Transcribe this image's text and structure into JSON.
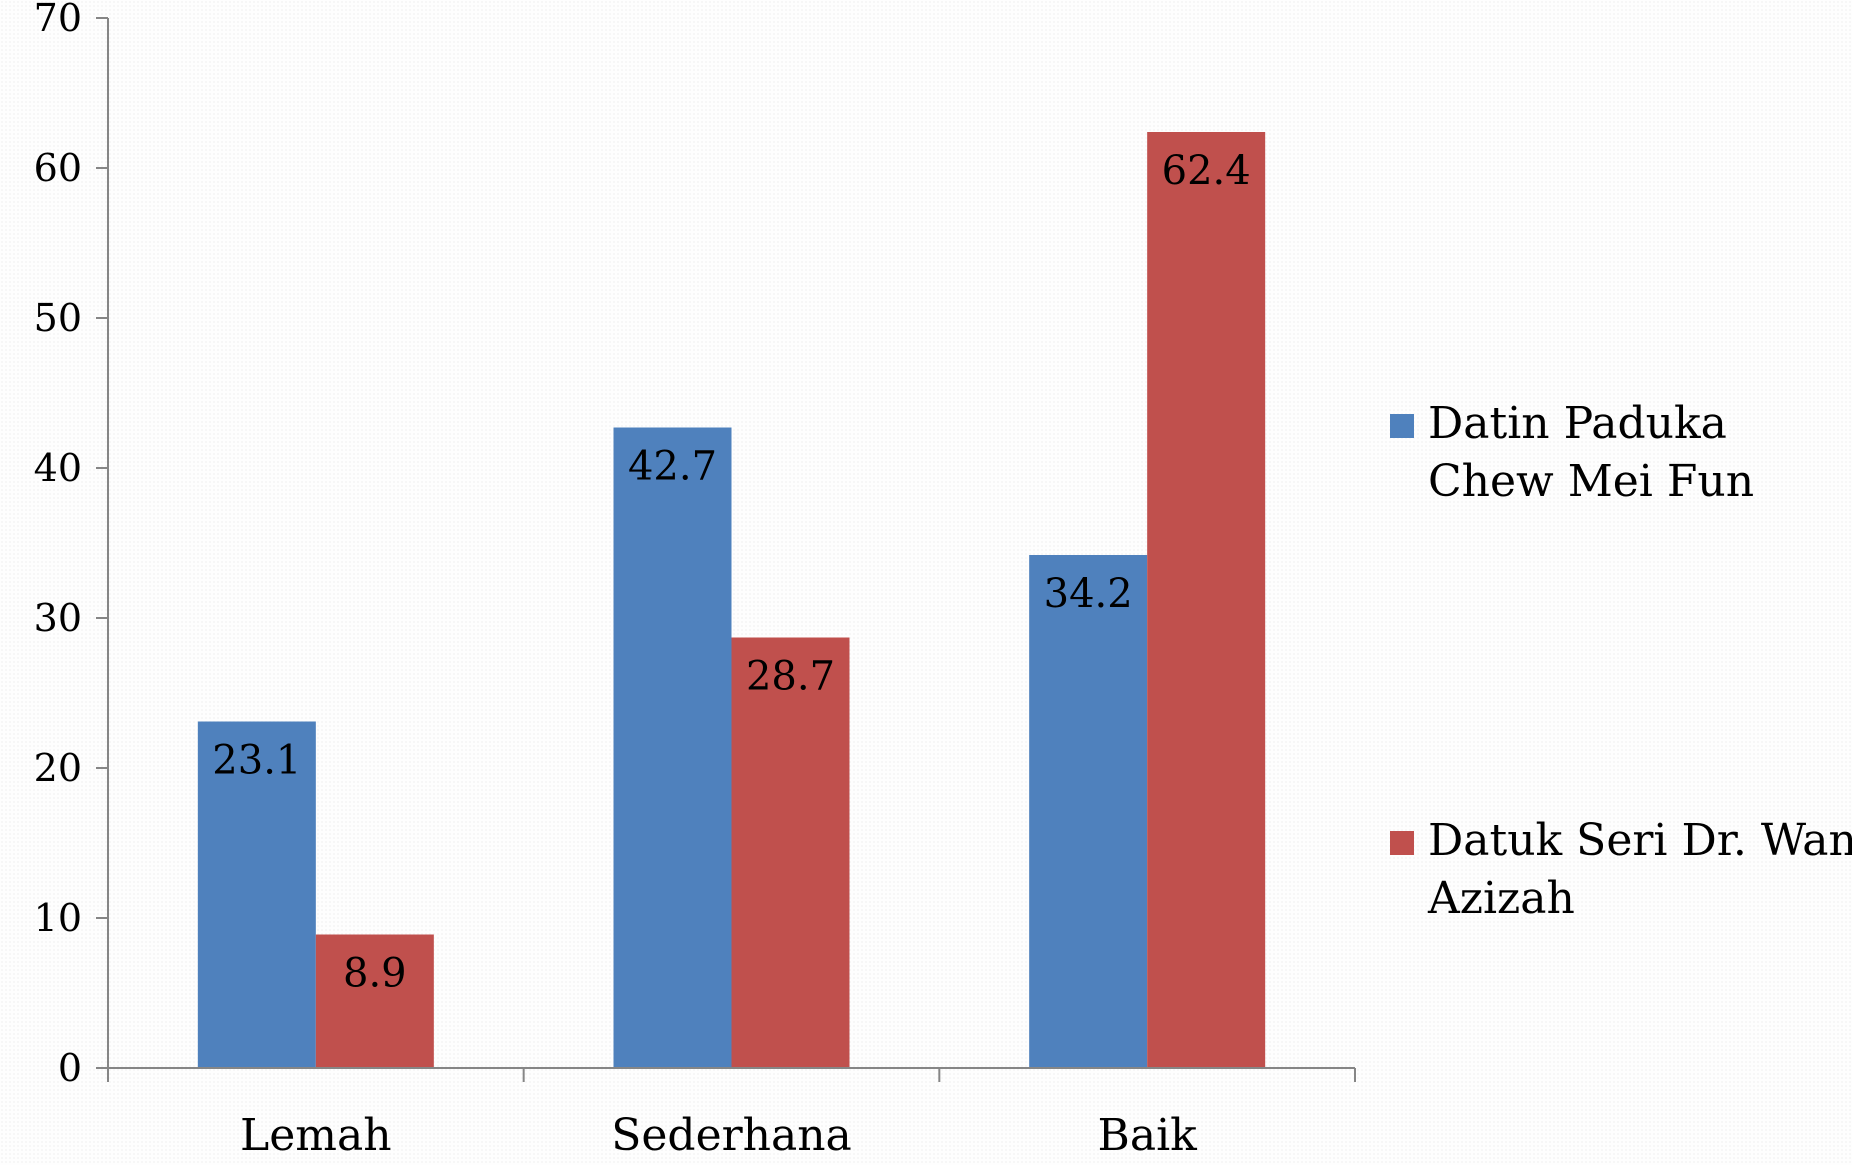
{
  "chart_data": {
    "type": "bar",
    "title": "",
    "xlabel": "",
    "ylabel": "",
    "categories": [
      "Lemah",
      "Sederhana",
      "Baik"
    ],
    "series": [
      {
        "name": "Datin Paduka Chew Mei Fun",
        "legend_lines": [
          "Datin Paduka",
          "Chew Mei Fun"
        ],
        "color": "#4F81BD",
        "values": [
          23.1,
          42.7,
          34.2
        ],
        "labels": [
          "23.1",
          "42.7",
          "34.2"
        ]
      },
      {
        "name": "Datuk Seri Dr. Wan Azizah",
        "legend_lines": [
          "Datuk Seri Dr. Wan",
          "Azizah"
        ],
        "color": "#C0504D",
        "values": [
          8.9,
          28.7,
          62.4
        ],
        "labels": [
          "8.9",
          "28.7",
          "62.4"
        ]
      }
    ],
    "ylim": [
      0,
      70
    ],
    "yticks": [
      "0",
      "10",
      "20",
      "30",
      "40",
      "50",
      "60",
      "70"
    ],
    "grid": false,
    "legend": "right",
    "axis_color": "#868686"
  }
}
